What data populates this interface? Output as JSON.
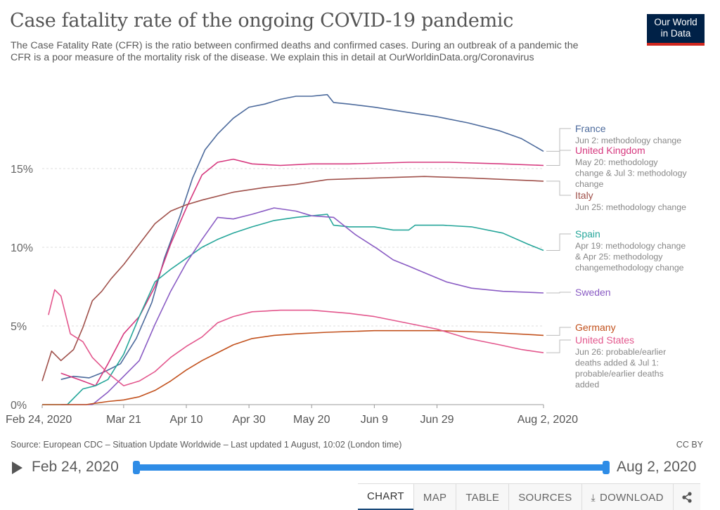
{
  "header": {
    "title": "Case fatality rate of the ongoing COVID-19 pandemic",
    "subtitle": "The Case Fatality Rate (CFR) is the ratio between confirmed deaths and confirmed cases. During an outbreak of a pandemic the CFR is a poor measure of the mortality risk of the disease. We explain this in detail at OurWorldinData.org/Coronavirus",
    "logo_line1": "Our World",
    "logo_line2": "in Data"
  },
  "colors": {
    "France": "#4c6a9c",
    "United Kingdom": "#d6387e",
    "Italy": "#a0514b",
    "Spain": "#26a69a",
    "Sweden": "#8a5cc4",
    "Germany": "#c2511d",
    "United States": "#e3578d"
  },
  "chart_data": {
    "type": "line",
    "title": "Case fatality rate of the ongoing COVID-19 pandemic",
    "x_ticks": [
      "Feb 24, 2020",
      "Mar 21",
      "Apr 10",
      "Apr 30",
      "May 20",
      "Jun 9",
      "Jun 29",
      "Aug 2, 2020"
    ],
    "y_ticks": [
      "0%",
      "5%",
      "10%",
      "15%"
    ],
    "ylim": [
      0,
      20
    ],
    "xlim": [
      "2020-02-24",
      "2020-08-02"
    ],
    "grid": "horizontal dashed",
    "legend": "right, labels at line ends",
    "series": [
      {
        "name": "France",
        "note": "Jun 2: methodology change",
        "points": [
          [
            "2020-03-01",
            1.6
          ],
          [
            "2020-03-05",
            1.8
          ],
          [
            "2020-03-10",
            1.7
          ],
          [
            "2020-03-15",
            2.1
          ],
          [
            "2020-03-20",
            2.6
          ],
          [
            "2020-03-25",
            4.2
          ],
          [
            "2020-03-30",
            6.5
          ],
          [
            "2020-04-03",
            9.3
          ],
          [
            "2020-04-08",
            12.0
          ],
          [
            "2020-04-12",
            14.4
          ],
          [
            "2020-04-16",
            16.2
          ],
          [
            "2020-04-20",
            17.2
          ],
          [
            "2020-04-25",
            18.2
          ],
          [
            "2020-04-30",
            18.9
          ],
          [
            "2020-05-05",
            19.1
          ],
          [
            "2020-05-10",
            19.4
          ],
          [
            "2020-05-15",
            19.6
          ],
          [
            "2020-05-20",
            19.6
          ],
          [
            "2020-05-25",
            19.7
          ],
          [
            "2020-05-27",
            19.2
          ],
          [
            "2020-06-01",
            19.1
          ],
          [
            "2020-06-09",
            18.9
          ],
          [
            "2020-06-19",
            18.6
          ],
          [
            "2020-06-29",
            18.3
          ],
          [
            "2020-07-09",
            17.9
          ],
          [
            "2020-07-19",
            17.4
          ],
          [
            "2020-07-26",
            16.9
          ],
          [
            "2020-08-02",
            16.1
          ]
        ]
      },
      {
        "name": "United Kingdom",
        "note": "May 20: methodology change & Jul 3: methodology change",
        "points": [
          [
            "2020-03-01",
            2.0
          ],
          [
            "2020-03-08",
            1.5
          ],
          [
            "2020-03-12",
            1.2
          ],
          [
            "2020-03-16",
            2.6
          ],
          [
            "2020-03-21",
            4.5
          ],
          [
            "2020-03-26",
            5.6
          ],
          [
            "2020-03-31",
            7.5
          ],
          [
            "2020-04-05",
            10.2
          ],
          [
            "2020-04-10",
            12.5
          ],
          [
            "2020-04-15",
            14.6
          ],
          [
            "2020-04-20",
            15.4
          ],
          [
            "2020-04-25",
            15.6
          ],
          [
            "2020-05-01",
            15.3
          ],
          [
            "2020-05-10",
            15.2
          ],
          [
            "2020-05-20",
            15.3
          ],
          [
            "2020-06-01",
            15.3
          ],
          [
            "2020-06-20",
            15.4
          ],
          [
            "2020-07-03",
            15.4
          ],
          [
            "2020-07-20",
            15.3
          ],
          [
            "2020-08-02",
            15.2
          ]
        ]
      },
      {
        "name": "Italy",
        "note": "Jun 25: methodology change",
        "points": [
          [
            "2020-02-24",
            1.5
          ],
          [
            "2020-02-27",
            3.4
          ],
          [
            "2020-03-01",
            2.8
          ],
          [
            "2020-03-05",
            3.5
          ],
          [
            "2020-03-08",
            4.9
          ],
          [
            "2020-03-11",
            6.6
          ],
          [
            "2020-03-14",
            7.2
          ],
          [
            "2020-03-17",
            8.0
          ],
          [
            "2020-03-21",
            8.9
          ],
          [
            "2020-03-26",
            10.2
          ],
          [
            "2020-03-31",
            11.5
          ],
          [
            "2020-04-05",
            12.3
          ],
          [
            "2020-04-10",
            12.7
          ],
          [
            "2020-04-15",
            13.0
          ],
          [
            "2020-04-25",
            13.5
          ],
          [
            "2020-05-05",
            13.8
          ],
          [
            "2020-05-15",
            14.0
          ],
          [
            "2020-05-25",
            14.3
          ],
          [
            "2020-06-09",
            14.4
          ],
          [
            "2020-06-25",
            14.5
          ],
          [
            "2020-07-10",
            14.4
          ],
          [
            "2020-08-02",
            14.2
          ]
        ]
      },
      {
        "name": "Spain",
        "note": "Apr 19: methodology change & Apr 25: methodology changemethodology change",
        "points": [
          [
            "2020-02-24",
            0.0
          ],
          [
            "2020-03-03",
            0.0
          ],
          [
            "2020-03-08",
            1.0
          ],
          [
            "2020-03-12",
            1.2
          ],
          [
            "2020-03-16",
            1.6
          ],
          [
            "2020-03-21",
            3.2
          ],
          [
            "2020-03-26",
            5.6
          ],
          [
            "2020-03-31",
            7.8
          ],
          [
            "2020-04-05",
            8.6
          ],
          [
            "2020-04-10",
            9.3
          ],
          [
            "2020-04-15",
            10.0
          ],
          [
            "2020-04-20",
            10.5
          ],
          [
            "2020-04-25",
            10.9
          ],
          [
            "2020-05-01",
            11.3
          ],
          [
            "2020-05-08",
            11.7
          ],
          [
            "2020-05-15",
            11.9
          ],
          [
            "2020-05-20",
            12.0
          ],
          [
            "2020-05-25",
            12.1
          ],
          [
            "2020-05-27",
            11.4
          ],
          [
            "2020-06-01",
            11.3
          ],
          [
            "2020-06-09",
            11.3
          ],
          [
            "2020-06-15",
            11.1
          ],
          [
            "2020-06-20",
            11.1
          ],
          [
            "2020-06-22",
            11.4
          ],
          [
            "2020-07-01",
            11.4
          ],
          [
            "2020-07-10",
            11.3
          ],
          [
            "2020-07-20",
            10.9
          ],
          [
            "2020-07-28",
            10.2
          ],
          [
            "2020-08-02",
            9.8
          ]
        ]
      },
      {
        "name": "Sweden",
        "note": "",
        "points": [
          [
            "2020-03-01",
            0.0
          ],
          [
            "2020-03-11",
            0.0
          ],
          [
            "2020-03-16",
            0.8
          ],
          [
            "2020-03-21",
            1.8
          ],
          [
            "2020-03-26",
            2.8
          ],
          [
            "2020-03-31",
            5.1
          ],
          [
            "2020-04-05",
            7.2
          ],
          [
            "2020-04-10",
            9.0
          ],
          [
            "2020-04-15",
            10.5
          ],
          [
            "2020-04-20",
            11.9
          ],
          [
            "2020-04-25",
            11.8
          ],
          [
            "2020-05-01",
            12.1
          ],
          [
            "2020-05-08",
            12.5
          ],
          [
            "2020-05-15",
            12.3
          ],
          [
            "2020-05-20",
            12.0
          ],
          [
            "2020-05-27",
            11.9
          ],
          [
            "2020-06-03",
            10.8
          ],
          [
            "2020-06-10",
            9.9
          ],
          [
            "2020-06-15",
            9.2
          ],
          [
            "2020-06-20",
            8.8
          ],
          [
            "2020-06-26",
            8.3
          ],
          [
            "2020-07-02",
            7.8
          ],
          [
            "2020-07-10",
            7.4
          ],
          [
            "2020-07-20",
            7.2
          ],
          [
            "2020-08-02",
            7.1
          ]
        ]
      },
      {
        "name": "Germany",
        "note": "",
        "points": [
          [
            "2020-02-24",
            0.0
          ],
          [
            "2020-03-09",
            0.0
          ],
          [
            "2020-03-16",
            0.2
          ],
          [
            "2020-03-21",
            0.3
          ],
          [
            "2020-03-26",
            0.5
          ],
          [
            "2020-03-31",
            0.9
          ],
          [
            "2020-04-05",
            1.5
          ],
          [
            "2020-04-10",
            2.2
          ],
          [
            "2020-04-15",
            2.8
          ],
          [
            "2020-04-20",
            3.3
          ],
          [
            "2020-04-25",
            3.8
          ],
          [
            "2020-05-01",
            4.2
          ],
          [
            "2020-05-08",
            4.4
          ],
          [
            "2020-05-15",
            4.5
          ],
          [
            "2020-05-25",
            4.6
          ],
          [
            "2020-06-09",
            4.7
          ],
          [
            "2020-06-29",
            4.7
          ],
          [
            "2020-07-15",
            4.6
          ],
          [
            "2020-08-02",
            4.4
          ]
        ]
      },
      {
        "name": "United States",
        "note": "Jun 26: probable/earlier deaths added & Jul 1: probable/earlier deaths added",
        "points": [
          [
            "2020-02-26",
            5.7
          ],
          [
            "2020-02-28",
            7.3
          ],
          [
            "2020-03-01",
            6.9
          ],
          [
            "2020-03-04",
            4.5
          ],
          [
            "2020-03-08",
            4.0
          ],
          [
            "2020-03-11",
            3.0
          ],
          [
            "2020-03-16",
            2.0
          ],
          [
            "2020-03-21",
            1.2
          ],
          [
            "2020-03-26",
            1.5
          ],
          [
            "2020-03-31",
            2.1
          ],
          [
            "2020-04-05",
            3.0
          ],
          [
            "2020-04-10",
            3.7
          ],
          [
            "2020-04-15",
            4.3
          ],
          [
            "2020-04-20",
            5.2
          ],
          [
            "2020-04-25",
            5.6
          ],
          [
            "2020-05-01",
            5.9
          ],
          [
            "2020-05-10",
            6.0
          ],
          [
            "2020-05-20",
            6.0
          ],
          [
            "2020-06-01",
            5.8
          ],
          [
            "2020-06-09",
            5.6
          ],
          [
            "2020-06-19",
            5.2
          ],
          [
            "2020-06-29",
            4.8
          ],
          [
            "2020-07-09",
            4.2
          ],
          [
            "2020-07-19",
            3.8
          ],
          [
            "2020-07-26",
            3.5
          ],
          [
            "2020-08-02",
            3.3
          ]
        ]
      }
    ]
  },
  "footer": {
    "source": "Source: European CDC – Situation Update Worldwide – Last updated 1 August, 10:02 (London time)",
    "license": "CC BY"
  },
  "timeline": {
    "start": "Feb 24, 2020",
    "end": "Aug 2, 2020"
  },
  "tabs": {
    "chart": "CHART",
    "map": "MAP",
    "table": "TABLE",
    "sources": "SOURCES",
    "download": "DOWNLOAD"
  }
}
